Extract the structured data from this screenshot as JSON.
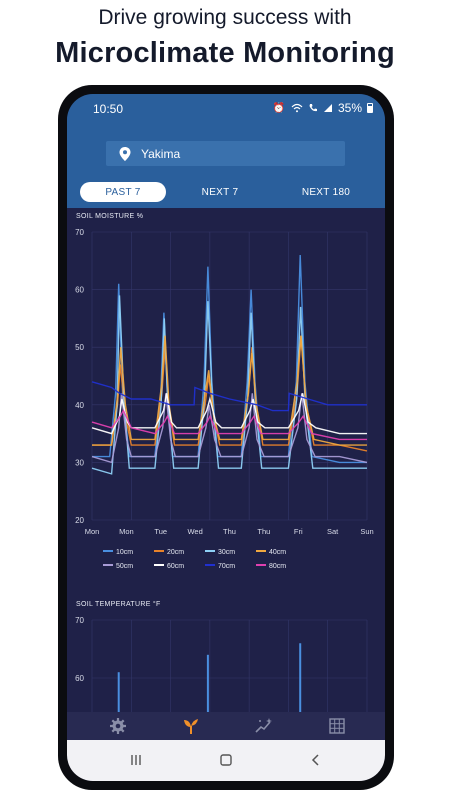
{
  "promo": {
    "line1": "Drive growing success with",
    "line2": "Microclimate Monitoring"
  },
  "status_bar": {
    "time": "10:50",
    "icons": [
      "alarm-icon",
      "wifi-icon",
      "call-icon",
      "signal-icon"
    ],
    "battery": "35%"
  },
  "location": {
    "icon": "location-pin-icon",
    "value": "Yakima"
  },
  "tabs": [
    {
      "label": "PAST 7",
      "active": true
    },
    {
      "label": "NEXT 7",
      "active": false
    },
    {
      "label": "NEXT 180",
      "active": false
    }
  ],
  "soil_moisture": {
    "title": "SOIL MOISTURE %",
    "y_ticks": [
      "70",
      "60",
      "50",
      "40",
      "30",
      "20"
    ],
    "x_ticks": [
      "Mon",
      "Mon",
      "Tue",
      "Wed",
      "Thu",
      "Thu",
      "Fri",
      "Sat",
      "Sun"
    ],
    "legend": [
      {
        "name": "10cm",
        "color": "#4a8fe0"
      },
      {
        "name": "20cm",
        "color": "#e8822a"
      },
      {
        "name": "30cm",
        "color": "#8ed0f5"
      },
      {
        "name": "40cm",
        "color": "#f0a840"
      },
      {
        "name": "50cm",
        "color": "#a89bd6"
      },
      {
        "name": "60cm",
        "color": "#ffffff"
      },
      {
        "name": "70cm",
        "color": "#2030d0"
      },
      {
        "name": "80cm",
        "color": "#e040b0"
      }
    ]
  },
  "soil_temperature": {
    "title": "SOIL TEMPERATURE °F",
    "y_ticks": [
      "70",
      "60"
    ]
  },
  "chart_data": [
    {
      "type": "line",
      "title": "SOIL MOISTURE %",
      "xlabel": "",
      "ylabel": "",
      "ylim": [
        20,
        70
      ],
      "xlim": [
        0,
        7
      ],
      "x_tick_labels": [
        "Mon",
        "Mon",
        "Tue",
        "Wed",
        "Thu",
        "Thu",
        "Fri",
        "Sat",
        "Sun"
      ],
      "grid": true,
      "legend_position": "bottom",
      "series": [
        {
          "name": "10cm",
          "color": "#4a8fe0",
          "points": [
            [
              0,
              31
            ],
            [
              0.45,
              31
            ],
            [
              0.6,
              42
            ],
            [
              0.68,
              61
            ],
            [
              0.78,
              42
            ],
            [
              0.95,
              31
            ],
            [
              1.6,
              31
            ],
            [
              1.75,
              42
            ],
            [
              1.83,
              56
            ],
            [
              1.92,
              42
            ],
            [
              2.05,
              31
            ],
            [
              2.7,
              31
            ],
            [
              2.85,
              44
            ],
            [
              2.95,
              64
            ],
            [
              3.05,
              44
            ],
            [
              3.2,
              31
            ],
            [
              3.8,
              31
            ],
            [
              3.95,
              44
            ],
            [
              4.05,
              60
            ],
            [
              4.15,
              44
            ],
            [
              4.3,
              31
            ],
            [
              5.0,
              31
            ],
            [
              5.2,
              44
            ],
            [
              5.3,
              66
            ],
            [
              5.42,
              44
            ],
            [
              5.6,
              31
            ],
            [
              6.3,
              30
            ],
            [
              7,
              30
            ]
          ]
        },
        {
          "name": "20cm",
          "color": "#e8822a",
          "points": [
            [
              0,
              33
            ],
            [
              0.5,
              33
            ],
            [
              0.65,
              40
            ],
            [
              0.72,
              47
            ],
            [
              0.85,
              38
            ],
            [
              1.0,
              33
            ],
            [
              1.6,
              33
            ],
            [
              1.78,
              42
            ],
            [
              1.86,
              50
            ],
            [
              1.95,
              40
            ],
            [
              2.1,
              33
            ],
            [
              2.7,
              33
            ],
            [
              2.88,
              40
            ],
            [
              2.97,
              45
            ],
            [
              3.1,
              38
            ],
            [
              3.25,
              33
            ],
            [
              3.8,
              33
            ],
            [
              3.98,
              42
            ],
            [
              4.07,
              50
            ],
            [
              4.18,
              40
            ],
            [
              4.35,
              33
            ],
            [
              5.0,
              33
            ],
            [
              5.22,
              42
            ],
            [
              5.32,
              52
            ],
            [
              5.45,
              40
            ],
            [
              5.65,
              33
            ],
            [
              6.3,
              33
            ],
            [
              7,
              32
            ]
          ]
        },
        {
          "name": "30cm",
          "color": "#8ed0f5",
          "points": [
            [
              0,
              29
            ],
            [
              0.5,
              28
            ],
            [
              0.64,
              40
            ],
            [
              0.7,
              59
            ],
            [
              0.82,
              40
            ],
            [
              0.95,
              29
            ],
            [
              1.6,
              29
            ],
            [
              1.76,
              40
            ],
            [
              1.84,
              55
            ],
            [
              1.93,
              40
            ],
            [
              2.08,
              29
            ],
            [
              2.7,
              29
            ],
            [
              2.86,
              41
            ],
            [
              2.95,
              58
            ],
            [
              3.07,
              40
            ],
            [
              3.22,
              29
            ],
            [
              3.8,
              29
            ],
            [
              3.96,
              41
            ],
            [
              4.05,
              56
            ],
            [
              4.16,
              40
            ],
            [
              4.32,
              29
            ],
            [
              5.0,
              29
            ],
            [
              5.21,
              41
            ],
            [
              5.31,
              57
            ],
            [
              5.43,
              40
            ],
            [
              5.62,
              29
            ],
            [
              6.3,
              29
            ],
            [
              7,
              29
            ]
          ]
        },
        {
          "name": "40cm",
          "color": "#f0a840",
          "points": [
            [
              0,
              33
            ],
            [
              0.5,
              33
            ],
            [
              0.66,
              42
            ],
            [
              0.73,
              50
            ],
            [
              0.85,
              40
            ],
            [
              1.0,
              34
            ],
            [
              1.6,
              34
            ],
            [
              1.78,
              44
            ],
            [
              1.86,
              52
            ],
            [
              1.96,
              40
            ],
            [
              2.1,
              34
            ],
            [
              2.7,
              34
            ],
            [
              2.88,
              42
            ],
            [
              2.97,
              46
            ],
            [
              3.1,
              38
            ],
            [
              3.25,
              34
            ],
            [
              3.8,
              34
            ],
            [
              3.98,
              42
            ],
            [
              4.07,
              49
            ],
            [
              4.18,
              40
            ],
            [
              4.35,
              34
            ],
            [
              5.0,
              34
            ],
            [
              5.22,
              44
            ],
            [
              5.32,
              52
            ],
            [
              5.45,
              40
            ],
            [
              5.65,
              34
            ],
            [
              6.3,
              33
            ],
            [
              7,
              33
            ]
          ]
        },
        {
          "name": "50cm",
          "color": "#a89bd6",
          "points": [
            [
              0,
              31
            ],
            [
              0.5,
              30
            ],
            [
              0.68,
              36
            ],
            [
              0.75,
              42
            ],
            [
              0.88,
              34
            ],
            [
              1.0,
              31
            ],
            [
              1.6,
              31
            ],
            [
              1.8,
              36
            ],
            [
              1.88,
              42
            ],
            [
              2.0,
              34
            ],
            [
              2.12,
              31
            ],
            [
              2.7,
              31
            ],
            [
              2.9,
              36
            ],
            [
              2.98,
              40
            ],
            [
              3.12,
              34
            ],
            [
              3.28,
              31
            ],
            [
              3.8,
              31
            ],
            [
              4.0,
              36
            ],
            [
              4.08,
              42
            ],
            [
              4.2,
              34
            ],
            [
              4.38,
              31
            ],
            [
              5.0,
              31
            ],
            [
              5.24,
              36
            ],
            [
              5.34,
              42
            ],
            [
              5.47,
              34
            ],
            [
              5.68,
              31
            ],
            [
              6.3,
              31
            ],
            [
              7,
              30
            ]
          ]
        },
        {
          "name": "60cm",
          "color": "#ffffff",
          "points": [
            [
              0,
              36
            ],
            [
              0.5,
              35
            ],
            [
              0.7,
              38
            ],
            [
              0.76,
              41
            ],
            [
              0.9,
              37
            ],
            [
              1.0,
              36
            ],
            [
              1.6,
              36
            ],
            [
              1.82,
              39
            ],
            [
              1.9,
              42
            ],
            [
              2.02,
              37
            ],
            [
              2.15,
              36
            ],
            [
              2.7,
              36
            ],
            [
              2.92,
              39
            ],
            [
              3.0,
              41
            ],
            [
              3.15,
              37
            ],
            [
              3.3,
              36
            ],
            [
              3.8,
              36
            ],
            [
              4.02,
              39
            ],
            [
              4.1,
              41
            ],
            [
              4.22,
              37
            ],
            [
              4.4,
              36
            ],
            [
              5.0,
              36
            ],
            [
              5.26,
              39
            ],
            [
              5.36,
              42
            ],
            [
              5.5,
              37
            ],
            [
              5.7,
              36
            ],
            [
              6.3,
              35
            ],
            [
              7,
              35
            ]
          ]
        },
        {
          "name": "70cm",
          "color": "#2030d0",
          "points": [
            [
              0,
              44
            ],
            [
              0.5,
              43
            ],
            [
              0.7,
              42
            ],
            [
              1.0,
              41
            ],
            [
              1.5,
              41
            ],
            [
              2.0,
              40
            ],
            [
              2.6,
              40
            ],
            [
              2.62,
              43
            ],
            [
              3.0,
              42
            ],
            [
              3.5,
              41
            ],
            [
              4.2,
              40
            ],
            [
              4.6,
              39
            ],
            [
              5.0,
              39
            ],
            [
              5.02,
              42
            ],
            [
              5.5,
              41
            ],
            [
              6.0,
              40
            ],
            [
              6.5,
              40
            ],
            [
              7,
              40
            ]
          ]
        },
        {
          "name": "80cm",
          "color": "#e040b0",
          "points": [
            [
              0,
              37
            ],
            [
              0.5,
              36
            ],
            [
              0.72,
              38
            ],
            [
              0.8,
              39
            ],
            [
              1.0,
              36
            ],
            [
              1.6,
              35
            ],
            [
              1.84,
              37
            ],
            [
              1.92,
              38
            ],
            [
              2.1,
              35
            ],
            [
              2.7,
              35
            ],
            [
              2.93,
              37
            ],
            [
              3.0,
              38
            ],
            [
              3.2,
              35
            ],
            [
              3.8,
              35
            ],
            [
              4.03,
              37
            ],
            [
              4.12,
              38
            ],
            [
              4.3,
              35
            ],
            [
              5.0,
              35
            ],
            [
              5.27,
              37
            ],
            [
              5.37,
              38
            ],
            [
              5.6,
              35
            ],
            [
              6.3,
              34
            ],
            [
              7,
              34
            ]
          ]
        }
      ]
    },
    {
      "type": "line",
      "title": "SOIL TEMPERATURE °F",
      "xlabel": "",
      "ylabel": "",
      "y_tick_labels": [
        "70",
        "60"
      ],
      "grid": true,
      "series": [
        {
          "name": "10cm",
          "color": "#4a8fe0",
          "points": [
            [
              0.68,
              61
            ],
            [
              2.95,
              64
            ],
            [
              5.3,
              66
            ]
          ]
        }
      ]
    }
  ]
}
